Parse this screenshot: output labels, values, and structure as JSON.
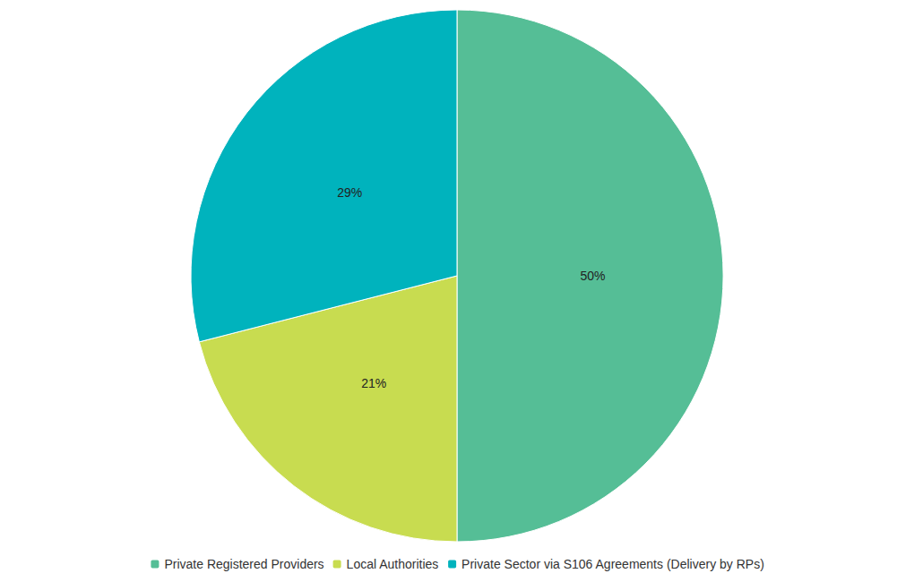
{
  "chart_data": {
    "type": "pie",
    "categories": [
      "Private Registered Providers",
      "Local Authorities",
      "Private Sector via S106 Agreements (Delivery by RPs)"
    ],
    "values": [
      50,
      21,
      29
    ],
    "value_labels": [
      "50%",
      "21%",
      "29%"
    ],
    "colors": [
      "#55be96",
      "#c8dc50",
      "#00b3bd"
    ],
    "data_labels": true,
    "legend": "bottom"
  }
}
